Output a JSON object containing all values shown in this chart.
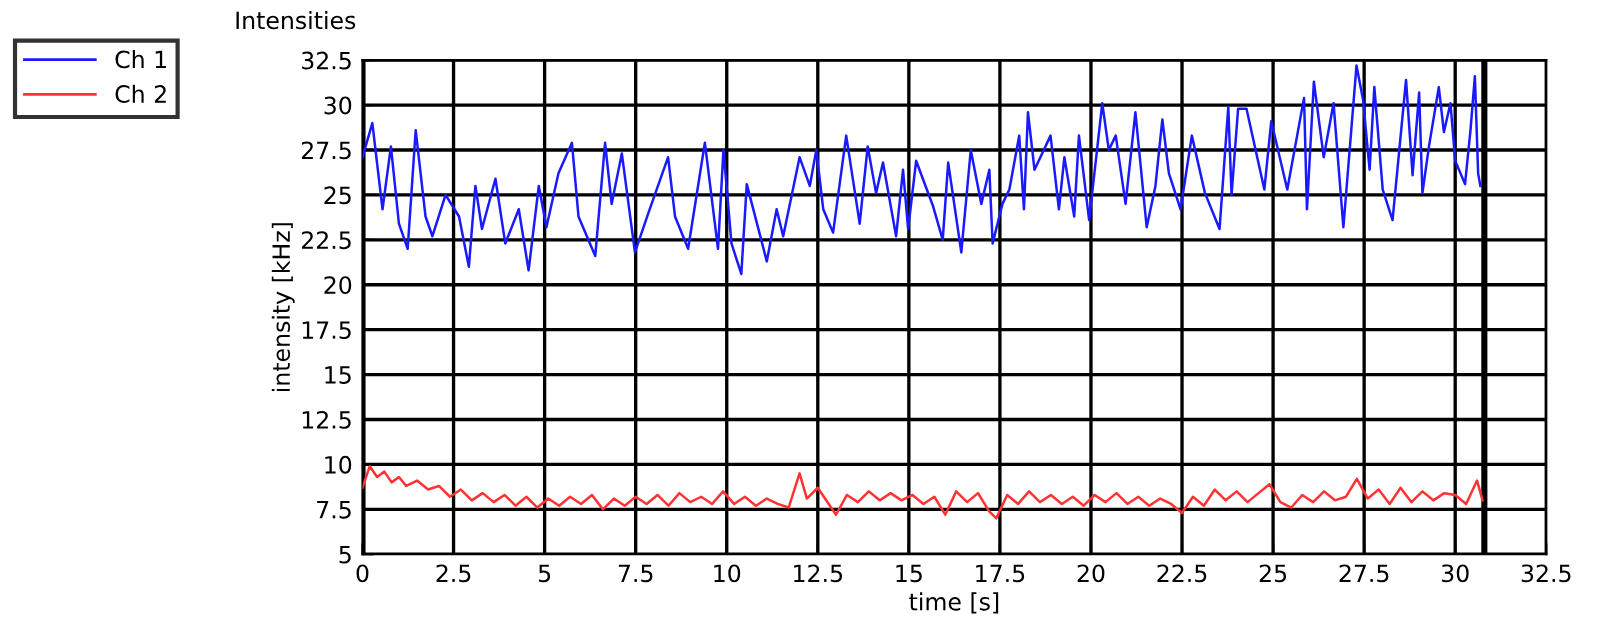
{
  "chart_data": {
    "type": "line",
    "title": "Intensities",
    "xlabel": "time [s]",
    "ylabel": "intensity [kHz]",
    "xlim": [
      0,
      32.5
    ],
    "ylim": [
      5,
      32.5
    ],
    "xticks": [
      0,
      2.5,
      5,
      7.5,
      10,
      12.5,
      15,
      17.5,
      20,
      22.5,
      25,
      27.5,
      30,
      32.5
    ],
    "yticks": [
      5,
      7.5,
      10,
      12.5,
      15,
      17.5,
      20,
      22.5,
      25,
      27.5,
      30,
      32.5
    ],
    "grid": true,
    "legend": "top left",
    "marker": "none",
    "line_style": "solid",
    "ref_lines": [
      {
        "axis": "x",
        "value": 0,
        "color": "#000000"
      },
      {
        "axis": "x",
        "value": 30.8,
        "color": "#000000"
      }
    ],
    "series": [
      {
        "name": "Ch 1",
        "color": "#1a1aff",
        "x": [
          0,
          0.27,
          0.55,
          0.78,
          1.0,
          1.24,
          1.46,
          1.73,
          1.92,
          2.28,
          2.65,
          2.92,
          3.1,
          3.28,
          3.65,
          3.92,
          4.29,
          4.56,
          4.84,
          5.05,
          5.38,
          5.75,
          5.93,
          6.39,
          6.66,
          6.84,
          7.12,
          7.48,
          7.85,
          8.39,
          8.58,
          8.94,
          9.4,
          9.76,
          9.91,
          10.13,
          10.4,
          10.55,
          11.1,
          11.37,
          11.55,
          12.0,
          12.28,
          12.46,
          12.65,
          12.92,
          13.28,
          13.65,
          13.87,
          14.1,
          14.29,
          14.65,
          14.84,
          14.98,
          15.2,
          15.66,
          15.93,
          16.08,
          16.44,
          16.7,
          16.99,
          17.21,
          17.3,
          17.57,
          17.76,
          18.03,
          18.16,
          18.27,
          18.45,
          18.89,
          19.12,
          19.27,
          19.54,
          19.67,
          19.95,
          20.31,
          20.49,
          20.68,
          20.95,
          21.22,
          21.53,
          21.77,
          21.96,
          22.14,
          22.46,
          22.77,
          23.13,
          23.53,
          23.77,
          23.86,
          24.04,
          24.27,
          24.76,
          24.95,
          25.39,
          25.85,
          25.93,
          26.12,
          26.39,
          26.66,
          26.93,
          27.29,
          27.47,
          27.65,
          27.78,
          28.01,
          28.28,
          28.65,
          28.83,
          29.01,
          29.1,
          29.28,
          29.55,
          29.69,
          29.87,
          30.0,
          30.27,
          30.42,
          30.54,
          30.63,
          30.69
        ],
        "values": [
          27.1,
          29.0,
          24.2,
          27.7,
          23.4,
          22.0,
          28.6,
          23.8,
          22.7,
          25.0,
          23.8,
          21.0,
          25.5,
          23.1,
          25.9,
          22.3,
          24.2,
          20.8,
          25.5,
          23.2,
          26.2,
          27.9,
          23.8,
          21.6,
          27.9,
          24.5,
          27.3,
          21.8,
          24.0,
          27.1,
          23.8,
          22.0,
          27.9,
          22.0,
          27.5,
          22.3,
          20.6,
          25.6,
          21.3,
          24.2,
          22.7,
          27.1,
          25.5,
          27.5,
          24.2,
          22.9,
          28.3,
          23.4,
          27.7,
          25.1,
          26.8,
          22.7,
          26.4,
          23.1,
          26.9,
          24.4,
          22.5,
          26.8,
          21.8,
          27.5,
          24.5,
          26.4,
          22.3,
          24.5,
          25.3,
          28.3,
          24.2,
          29.6,
          26.4,
          28.3,
          24.2,
          27.1,
          23.8,
          28.3,
          23.6,
          30.1,
          27.5,
          28.3,
          24.5,
          29.6,
          23.2,
          25.5,
          29.2,
          26.2,
          24.2,
          28.3,
          25.1,
          23.1,
          29.9,
          25.0,
          29.8,
          29.8,
          25.3,
          29.1,
          25.3,
          30.4,
          24.2,
          31.3,
          27.1,
          30.1,
          23.2,
          32.2,
          30.3,
          26.4,
          31.0,
          25.3,
          23.6,
          31.4,
          26.1,
          30.7,
          25.1,
          27.7,
          31.0,
          28.5,
          30.1,
          26.9,
          25.6,
          28.6,
          31.6,
          26.2,
          25.5
        ]
      },
      {
        "name": "Ch 2",
        "color": "#ff3333",
        "x": [
          0,
          0.2,
          0.4,
          0.6,
          0.8,
          1.0,
          1.2,
          1.5,
          1.8,
          2.1,
          2.4,
          2.7,
          3.0,
          3.3,
          3.6,
          3.9,
          4.2,
          4.5,
          4.8,
          5.1,
          5.4,
          5.7,
          6.0,
          6.3,
          6.6,
          6.9,
          7.2,
          7.5,
          7.8,
          8.1,
          8.4,
          8.7,
          9.0,
          9.3,
          9.6,
          9.9,
          10.2,
          10.5,
          10.8,
          11.1,
          11.4,
          11.7,
          12.0,
          12.2,
          12.5,
          12.8,
          13.0,
          13.3,
          13.6,
          13.9,
          14.2,
          14.5,
          14.8,
          15.1,
          15.4,
          15.7,
          16.0,
          16.3,
          16.6,
          16.9,
          17.2,
          17.4,
          17.7,
          18.0,
          18.3,
          18.6,
          18.9,
          19.2,
          19.5,
          19.8,
          20.1,
          20.4,
          20.7,
          21.0,
          21.3,
          21.6,
          21.9,
          22.2,
          22.5,
          22.8,
          23.1,
          23.4,
          23.7,
          24.0,
          24.3,
          24.6,
          24.9,
          25.2,
          25.5,
          25.8,
          26.1,
          26.4,
          26.7,
          27.0,
          27.3,
          27.6,
          27.9,
          28.2,
          28.5,
          28.8,
          29.1,
          29.4,
          29.7,
          30.0,
          30.3,
          30.6,
          30.75
        ],
        "values": [
          8.7,
          9.9,
          9.3,
          9.6,
          9.0,
          9.3,
          8.8,
          9.1,
          8.6,
          8.8,
          8.2,
          8.6,
          8.0,
          8.4,
          7.9,
          8.3,
          7.7,
          8.2,
          7.6,
          8.1,
          7.7,
          8.2,
          7.8,
          8.3,
          7.5,
          8.1,
          7.7,
          8.2,
          7.8,
          8.3,
          7.7,
          8.4,
          7.9,
          8.2,
          7.8,
          8.5,
          7.8,
          8.2,
          7.7,
          8.1,
          7.8,
          7.6,
          9.5,
          8.1,
          8.7,
          7.8,
          7.2,
          8.3,
          7.9,
          8.5,
          8.0,
          8.4,
          8.0,
          8.3,
          7.8,
          8.2,
          7.2,
          8.5,
          7.9,
          8.4,
          7.4,
          7.0,
          8.3,
          7.8,
          8.5,
          7.9,
          8.3,
          7.8,
          8.2,
          7.7,
          8.3,
          7.9,
          8.4,
          7.8,
          8.2,
          7.7,
          8.1,
          7.8,
          7.3,
          8.2,
          7.7,
          8.6,
          8.0,
          8.5,
          7.9,
          8.4,
          8.9,
          7.9,
          7.6,
          8.3,
          7.9,
          8.5,
          8.0,
          8.2,
          9.2,
          8.1,
          8.6,
          7.8,
          8.7,
          7.9,
          8.5,
          8.0,
          8.4,
          8.3,
          7.8,
          9.1,
          8.0
        ]
      }
    ]
  }
}
